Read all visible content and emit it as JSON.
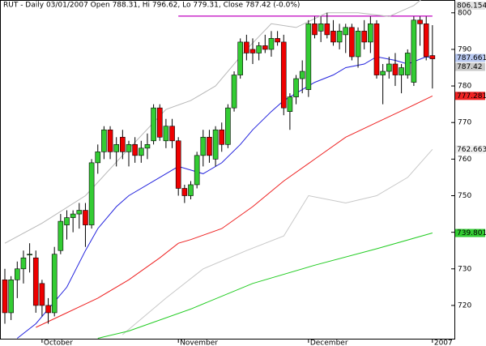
{
  "chart_data": {
    "type": "candlestick",
    "title": "RUT - Daily 03/01/2007 Open 788.31, Hi 796.62, Lo 779.31, Close 787.42 (-0.0%)",
    "categories": [
      null,
      null,
      null,
      null,
      null,
      null,
      "October",
      null,
      null,
      null,
      null,
      null,
      null,
      null,
      null,
      null,
      null,
      null,
      null,
      null,
      null,
      null,
      null,
      null,
      null,
      null,
      null,
      null,
      "November",
      null,
      null,
      null,
      null,
      null,
      null,
      null,
      null,
      null,
      null,
      null,
      null,
      null,
      null,
      null,
      null,
      null,
      null,
      null,
      null,
      "December",
      null,
      null,
      null,
      null,
      null,
      null,
      null,
      null,
      null,
      null,
      null,
      null,
      null,
      null,
      null,
      null,
      null,
      null,
      null,
      "2007"
    ],
    "open": [
      727,
      718,
      727,
      730,
      734,
      733,
      726,
      720,
      718,
      735,
      742,
      744,
      745,
      746,
      742,
      759,
      762,
      768,
      762,
      766,
      762,
      764,
      761,
      763,
      765,
      774,
      765,
      769,
      765,
      752,
      750,
      753,
      761,
      766,
      760,
      768,
      764,
      774,
      783,
      792,
      790,
      789,
      791,
      790,
      793,
      792,
      773,
      777,
      782,
      779,
      797,
      795,
      797,
      795,
      792,
      794,
      796,
      788,
      795,
      792,
      797,
      783,
      784,
      786,
      783,
      783,
      781,
      798,
      797,
      788.31
    ],
    "high": [
      730,
      728,
      732,
      735,
      737,
      735,
      727,
      722,
      736,
      745,
      746,
      746,
      748,
      748,
      760,
      764,
      769,
      769,
      766,
      768,
      765,
      766,
      765,
      767,
      775,
      775,
      771,
      771,
      766,
      753,
      754,
      762,
      768,
      768,
      769,
      770,
      775,
      784,
      793,
      794,
      793,
      792,
      794,
      795,
      795,
      794,
      778,
      783,
      787,
      798,
      799,
      799,
      800,
      798,
      797,
      797,
      797,
      796,
      798,
      799,
      798,
      786,
      788,
      789,
      786,
      790,
      799,
      799,
      799,
      796.62
    ],
    "low": [
      715,
      716,
      722,
      726,
      729,
      718,
      717,
      715,
      717,
      734,
      738,
      740,
      741,
      736,
      741,
      756,
      760,
      760,
      758,
      760,
      758,
      759,
      759,
      760,
      764,
      765,
      763,
      763,
      750,
      748,
      749,
      752,
      758,
      759,
      758,
      762,
      763,
      773,
      782,
      787,
      786,
      787,
      789,
      788,
      791,
      772,
      768,
      775,
      778,
      777,
      793,
      792,
      793,
      791,
      790,
      789,
      787,
      785,
      790,
      789,
      782,
      775,
      782,
      780,
      778,
      782,
      780,
      791,
      787,
      779.31
    ],
    "close": [
      718,
      727,
      730,
      733,
      734,
      720,
      720,
      718,
      734,
      743,
      744,
      745,
      746,
      742,
      759,
      762,
      768,
      762,
      764,
      762,
      764,
      761,
      763,
      764,
      774,
      766,
      769,
      765,
      752,
      750,
      753,
      761,
      766,
      761,
      768,
      764,
      774,
      783,
      792,
      789,
      789,
      791,
      790,
      793,
      792,
      774,
      777,
      782,
      784,
      797,
      794,
      797,
      794,
      792,
      795,
      796,
      788,
      795,
      792,
      797,
      783,
      784,
      786,
      783,
      785,
      789,
      798,
      797,
      788,
      787.42
    ],
    "up_color": "#33cc33",
    "down_color": "#ee0000",
    "overlays": [
      {
        "color": "#b8b8b8",
        "x": [
          0,
          6,
          13,
          19,
          26,
          30,
          34,
          39,
          43,
          47,
          52,
          57,
          62,
          66,
          69
        ],
        "values": [
          737,
          742.5,
          750,
          761,
          773.6,
          776,
          780,
          790,
          797,
          796,
          800,
          800,
          799,
          802,
          806.154
        ]
      },
      {
        "color": "#c8c8c8",
        "x": [
          19,
          26,
          32,
          39,
          45,
          49,
          55,
          60,
          65,
          69
        ],
        "values": [
          712,
          722,
          730,
          735,
          739,
          750,
          748,
          750,
          755,
          762.663
        ]
      },
      {
        "color": "#2222dd",
        "x": [
          2,
          5,
          10,
          13,
          15,
          18,
          20,
          25,
          28,
          30,
          32,
          35,
          38,
          40,
          43,
          45,
          48,
          50,
          53,
          55,
          58,
          60,
          63,
          65,
          68,
          69
        ],
        "values": [
          711,
          715,
          725,
          735,
          741,
          747,
          750,
          755,
          758,
          757,
          756,
          759,
          764,
          768,
          773,
          776,
          779,
          781,
          783,
          785,
          786,
          788,
          787,
          786,
          788,
          787.661
        ]
      },
      {
        "color": "#ee2222",
        "x": [
          5,
          10,
          15,
          20,
          25,
          28,
          30,
          35,
          40,
          45,
          50,
          55,
          60,
          65,
          69
        ],
        "values": [
          714,
          718,
          722,
          727,
          733,
          737,
          738,
          741,
          747,
          754,
          760,
          766,
          770,
          774,
          777.281
        ]
      },
      {
        "color": "#22cc22",
        "x": [
          15,
          20,
          30,
          40,
          50,
          60,
          69
        ],
        "values": [
          711,
          713,
          719,
          726,
          731,
          735.5,
          739.801
        ]
      }
    ],
    "hline": {
      "value": 799.1,
      "x": [
        28,
        69
      ],
      "color": "#c000c0"
    },
    "price_labels": [
      {
        "value": 806.154,
        "color": "#e4e4e4"
      },
      {
        "value": 787.661,
        "color": "#b8c8f0"
      },
      {
        "value": 787.42,
        "color": "#c8c8c8"
      },
      {
        "value": 777.281,
        "color": "#ee2222"
      },
      {
        "value": 762.663,
        "color": "#f0f0f0"
      },
      {
        "value": 739.801,
        "color": "#33cc33"
      }
    ],
    "ylim": [
      710.9,
      803.5
    ],
    "yticks": [
      720,
      730,
      740,
      750,
      760,
      770,
      780,
      790,
      800
    ]
  }
}
